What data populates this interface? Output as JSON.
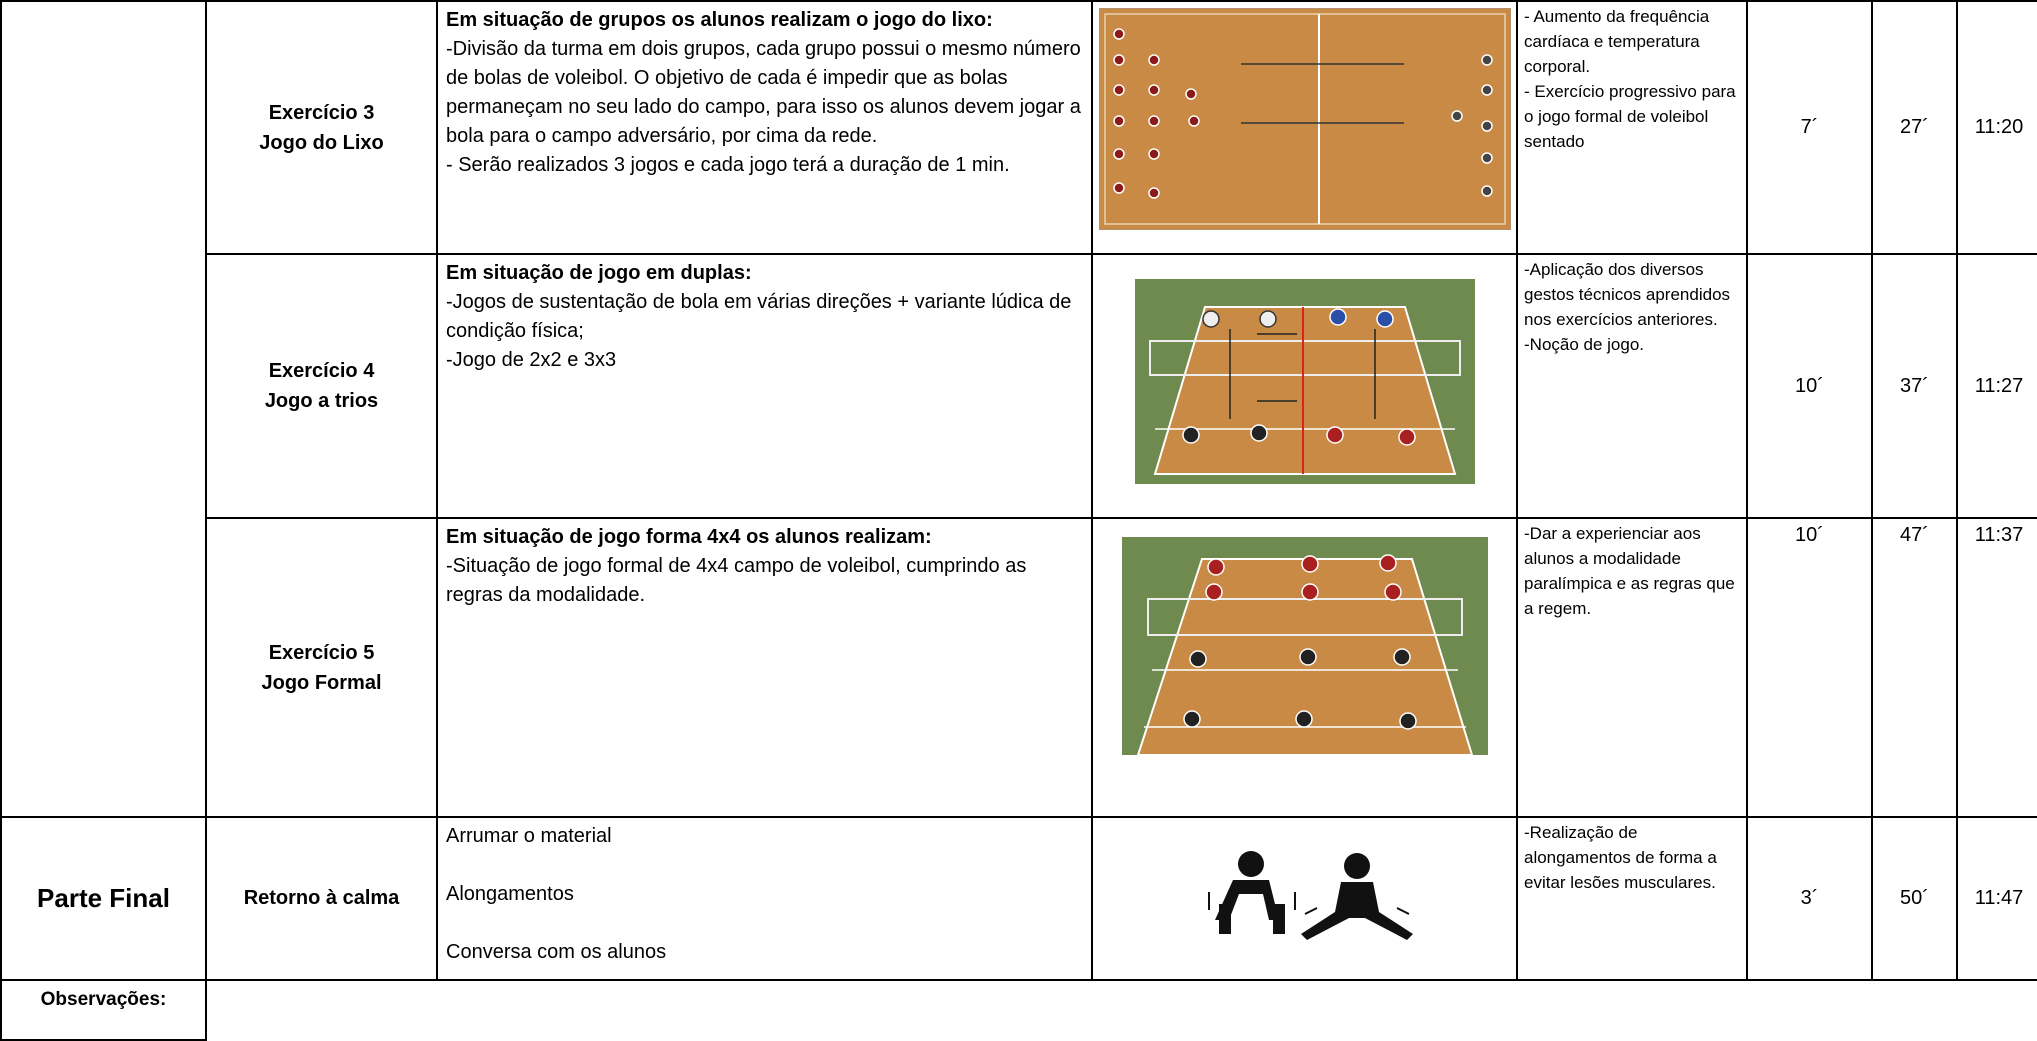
{
  "rows": [
    {
      "exercise": [
        "Exercício 3",
        "Jogo do Lixo"
      ],
      "heading": "Em situação de grupos os alunos realizam o jogo do lixo:",
      "lines": [
        "-Divisão da turma em dois grupos, cada grupo possui o mesmo número de bolas de voleibol. O objetivo de cada é impedir que as bolas permaneçam no seu lado do campo, para isso os alunos devem jogar a bola para o campo adversário, por cima da rede.",
        "- Serão realizados 3 jogos e cada jogo terá a duração de 1 min."
      ],
      "objectives": [
        "- Aumento da frequência cardíaca e temperatura corporal.",
        "- Exercício progressivo para o jogo formal de voleibol sentado"
      ],
      "duration": "7´",
      "elapsed": "27´",
      "clock": "11:20"
    },
    {
      "exercise": [
        "Exercício 4",
        "Jogo a trios"
      ],
      "heading": "Em situação de jogo em duplas:",
      "lines": [
        "-Jogos de sustentação de bola em várias direções + variante lúdica de condição física;",
        "-Jogo de 2x2 e 3x3"
      ],
      "objectives": [
        "-Aplicação dos diversos gestos técnicos aprendidos nos exercícios anteriores.",
        "-Noção de jogo."
      ],
      "duration": "10´",
      "elapsed": "37´",
      "clock": "11:27"
    },
    {
      "exercise": [
        "Exercício 5",
        "Jogo Formal"
      ],
      "heading": "Em situação de jogo forma 4x4 os alunos realizam:",
      "lines": [
        "-Situação de jogo formal de 4x4 campo de voleibol, cumprindo as regras da modalidade."
      ],
      "objectives": [
        "-Dar a experienciar aos alunos a modalidade paralímpica e as regras que a regem."
      ],
      "duration": "10´",
      "elapsed": "47´",
      "clock": "11:37"
    }
  ],
  "final": {
    "part": "Parte Final",
    "exercise": "Retorno à calma",
    "lines": [
      "Arrumar o material",
      "Alongamentos",
      "Conversa com os alunos"
    ],
    "objectives": [
      "-Realização de alongamentos de forma a evitar lesões musculares."
    ],
    "duration": "3´",
    "elapsed": "50´",
    "clock": "11:47"
  },
  "observations_label": "Observações:"
}
